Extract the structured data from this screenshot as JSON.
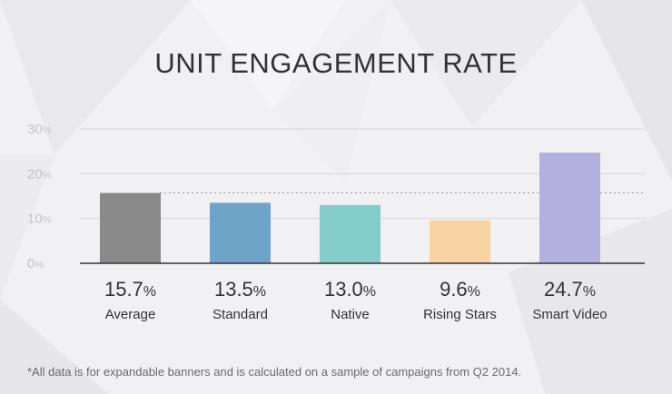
{
  "chart_data": {
    "type": "bar",
    "title": "UNIT ENGAGEMENT RATE",
    "categories": [
      "Average",
      "Standard",
      "Native",
      "Rising Stars",
      "Smart Video"
    ],
    "values": [
      15.7,
      13.5,
      13.0,
      9.6,
      24.7
    ],
    "value_labels": [
      "15.7",
      "13.5",
      "13.0",
      "9.6",
      "24.7"
    ],
    "unit": "%",
    "colors": [
      "#8a8a8a",
      "#6fa3c8",
      "#85cdc9",
      "#f8d3a3",
      "#b3b0de"
    ],
    "ylim": [
      0,
      30
    ],
    "yticks": [
      {
        "value": 0,
        "label": "0"
      },
      {
        "value": 10,
        "label": "10"
      },
      {
        "value": 20,
        "label": "20"
      },
      {
        "value": 30,
        "label": "30"
      }
    ],
    "reference_line": {
      "value": 15.7,
      "style": "dotted"
    },
    "footnote": "*All data is for expandable banners and is calculated on a sample of campaigns from Q2 2014."
  }
}
